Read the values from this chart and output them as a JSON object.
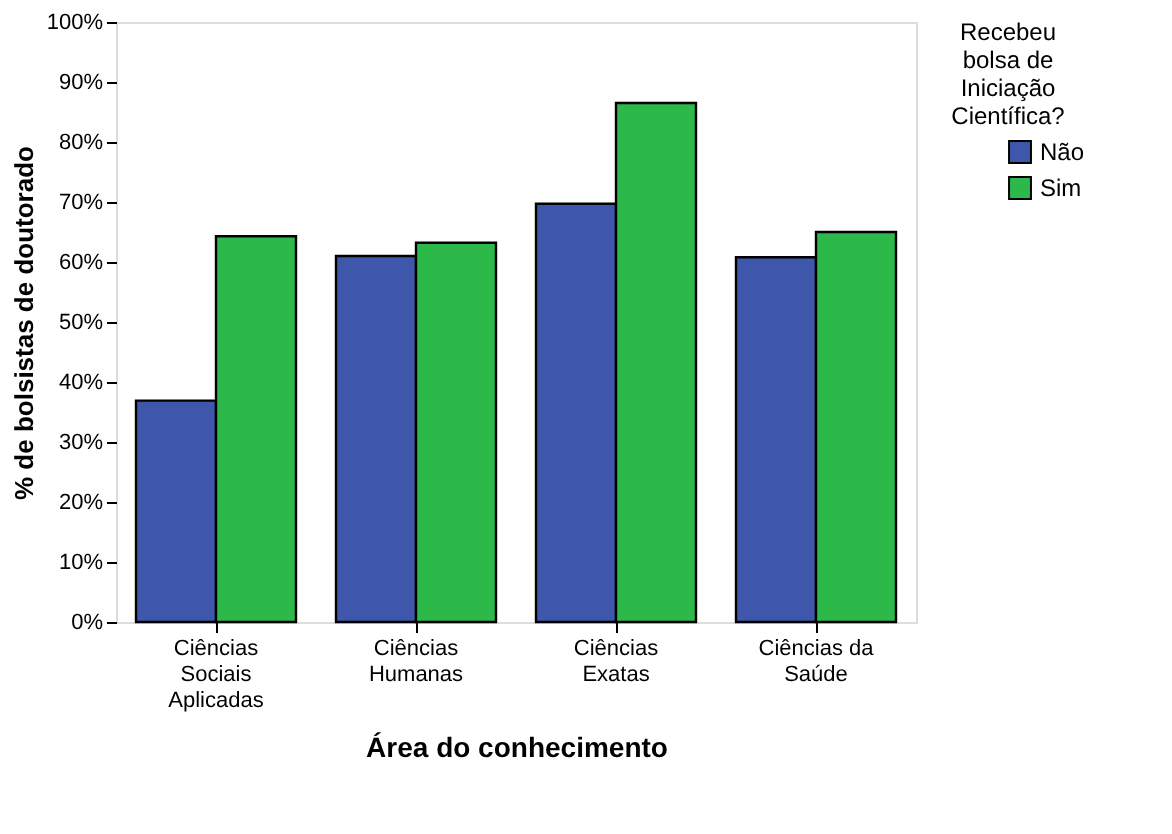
{
  "chart_data": {
    "type": "bar",
    "categories": [
      "Ciências\nSociais\nAplicadas",
      "Ciências\nHumanas",
      "Ciências\nExatas",
      "Ciências da\nSaúde"
    ],
    "series": [
      {
        "name": "Não",
        "color": "#3f57aa",
        "values": [
          36.9,
          61,
          69.7,
          60.8
        ]
      },
      {
        "name": "Sim",
        "color": "#2db84a",
        "values": [
          64.3,
          63.2,
          86.5,
          65
        ]
      }
    ],
    "xlabel": "Área do conhecimento",
    "ylabel": "% de bolsistas de doutorado",
    "legend_title": "Recebeu\nbolsa de\nIniciação\nCientífica?",
    "legend": "right",
    "ylim": [
      0,
      100
    ],
    "yticks": [
      {
        "value": 0,
        "label": "0%"
      },
      {
        "value": 10,
        "label": "10%"
      },
      {
        "value": 20,
        "label": "20%"
      },
      {
        "value": 30,
        "label": "30%"
      },
      {
        "value": 40,
        "label": "40%"
      },
      {
        "value": 50,
        "label": "50%"
      },
      {
        "value": 60,
        "label": "60%"
      },
      {
        "value": 70,
        "label": "70%"
      },
      {
        "value": 80,
        "label": "80%"
      },
      {
        "value": 90,
        "label": "90%"
      },
      {
        "value": 100,
        "label": "100%"
      }
    ],
    "grid": false
  }
}
